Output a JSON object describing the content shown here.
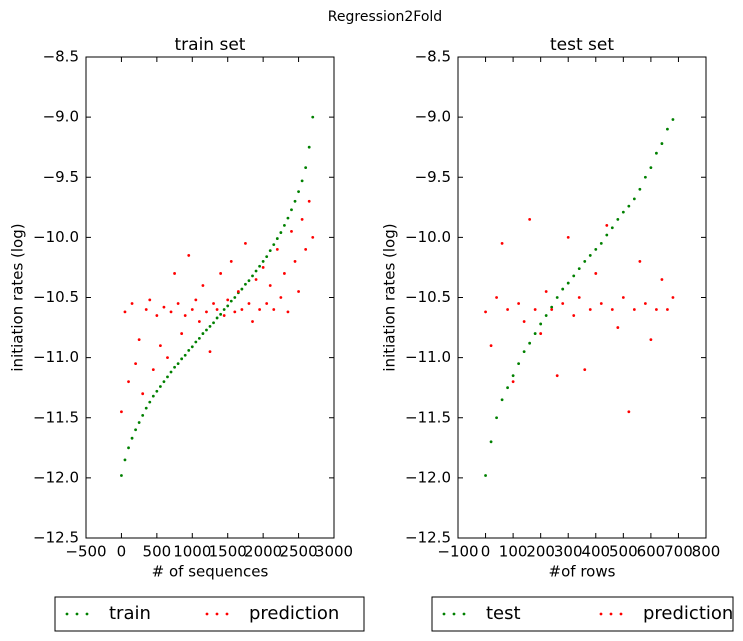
{
  "title": "Regression2Fold",
  "chart_data": [
    {
      "type": "scatter",
      "title": "train set",
      "x_label": "# of sequences",
      "y_label": "initiation rates (log)",
      "xlim": [
        -500,
        3000
      ],
      "ylim": [
        -12.5,
        -8.5
      ],
      "xticks": [
        {
          "value": -500,
          "label": "−500"
        },
        0,
        500,
        1000,
        1500,
        2000,
        2500,
        3000
      ],
      "yticks": [
        {
          "value": -12.5,
          "label": "−12.5"
        },
        {
          "value": -12.0,
          "label": "−12.0"
        },
        {
          "value": -11.5,
          "label": "−11.5"
        },
        {
          "value": -11.0,
          "label": "−11.0"
        },
        {
          "value": -10.5,
          "label": "−10.5"
        },
        {
          "value": -10.0,
          "label": "−10.0"
        },
        {
          "value": -9.5,
          "label": "−9.5"
        },
        {
          "value": -9.0,
          "label": "−9.0"
        },
        {
          "value": -8.5,
          "label": "−8.5"
        }
      ],
      "grid": false,
      "legend": "bottom",
      "x": [
        0,
        50,
        100,
        150,
        200,
        250,
        300,
        350,
        400,
        450,
        500,
        550,
        600,
        650,
        700,
        750,
        800,
        850,
        900,
        950,
        1000,
        1050,
        1100,
        1150,
        1200,
        1250,
        1300,
        1350,
        1400,
        1450,
        1500,
        1550,
        1600,
        1650,
        1700,
        1750,
        1800,
        1850,
        1900,
        1950,
        2000,
        2050,
        2100,
        2150,
        2200,
        2250,
        2300,
        2350,
        2400,
        2450,
        2500,
        2550,
        2600,
        2650,
        2700
      ],
      "series": [
        {
          "name": "train",
          "color": "#008000",
          "values": [
            -11.98,
            -11.85,
            -11.75,
            -11.67,
            -11.6,
            -11.54,
            -11.48,
            -11.42,
            -11.37,
            -11.32,
            -11.28,
            -11.24,
            -11.2,
            -11.16,
            -11.12,
            -11.08,
            -11.05,
            -11.01,
            -10.98,
            -10.94,
            -10.91,
            -10.87,
            -10.84,
            -10.8,
            -10.77,
            -10.74,
            -10.71,
            -10.67,
            -10.64,
            -10.6,
            -10.57,
            -10.53,
            -10.5,
            -10.46,
            -10.43,
            -10.39,
            -10.36,
            -10.32,
            -10.28,
            -10.24,
            -10.2,
            -10.16,
            -10.11,
            -10.06,
            -10.01,
            -9.96,
            -9.9,
            -9.84,
            -9.77,
            -9.7,
            -9.62,
            -9.53,
            -9.42,
            -9.25,
            -9.0
          ]
        },
        {
          "name": "prediction",
          "color": "#ff0000",
          "values": [
            -11.45,
            -10.62,
            -11.2,
            -10.55,
            -11.05,
            -10.85,
            -11.3,
            -10.6,
            -10.52,
            -11.1,
            -10.65,
            -10.9,
            -10.58,
            -11.0,
            -10.62,
            -10.3,
            -10.55,
            -10.8,
            -10.65,
            -10.15,
            -10.6,
            -10.52,
            -10.7,
            -10.4,
            -10.62,
            -10.95,
            -10.55,
            -10.6,
            -10.3,
            -10.65,
            -10.52,
            -10.2,
            -10.62,
            -10.45,
            -10.6,
            -10.05,
            -10.55,
            -10.7,
            -10.35,
            -10.6,
            -10.25,
            -10.55,
            -10.4,
            -10.6,
            -10.1,
            -10.5,
            -10.3,
            -10.62,
            -9.95,
            -10.2,
            -10.45,
            -9.85,
            -10.1,
            -9.7,
            -10.0
          ]
        }
      ]
    },
    {
      "type": "scatter",
      "title": "test set",
      "x_label": "#of rows",
      "y_label": "initiation rates (log)",
      "xlim": [
        -100,
        800
      ],
      "ylim": [
        -12.5,
        -8.5
      ],
      "xticks": [
        {
          "value": -100,
          "label": "−100"
        },
        0,
        100,
        200,
        300,
        400,
        500,
        600,
        700,
        800
      ],
      "yticks": [
        {
          "value": -12.5,
          "label": "−12.5"
        },
        {
          "value": -12.0,
          "label": "−12.0"
        },
        {
          "value": -11.5,
          "label": "−11.5"
        },
        {
          "value": -11.0,
          "label": "−11.0"
        },
        {
          "value": -10.5,
          "label": "−10.5"
        },
        {
          "value": -10.0,
          "label": "−10.0"
        },
        {
          "value": -9.5,
          "label": "−9.5"
        },
        {
          "value": -9.0,
          "label": "−9.0"
        },
        {
          "value": -8.5,
          "label": "−8.5"
        }
      ],
      "grid": false,
      "legend": "bottom",
      "x": [
        0,
        20,
        40,
        60,
        80,
        100,
        120,
        140,
        160,
        180,
        200,
        220,
        240,
        260,
        280,
        300,
        320,
        340,
        360,
        380,
        400,
        420,
        440,
        460,
        480,
        500,
        520,
        540,
        560,
        580,
        600,
        620,
        640,
        660,
        680
      ],
      "series": [
        {
          "name": "test",
          "color": "#008000",
          "values": [
            -11.98,
            -11.7,
            -11.5,
            -11.35,
            -11.25,
            -11.15,
            -11.05,
            -10.95,
            -10.88,
            -10.8,
            -10.72,
            -10.65,
            -10.58,
            -10.5,
            -10.43,
            -10.38,
            -10.32,
            -10.26,
            -10.2,
            -10.15,
            -10.1,
            -10.05,
            -9.98,
            -9.92,
            -9.85,
            -9.79,
            -9.74,
            -9.68,
            -9.6,
            -9.5,
            -9.42,
            -9.3,
            -9.22,
            -9.1,
            -9.02
          ]
        },
        {
          "name": "prediction",
          "color": "#ff0000",
          "values": [
            -10.62,
            -10.9,
            -10.5,
            -10.05,
            -10.6,
            -11.2,
            -10.55,
            -10.7,
            -9.85,
            -10.6,
            -10.8,
            -10.45,
            -10.6,
            -11.15,
            -10.55,
            -10.0,
            -10.65,
            -10.5,
            -11.1,
            -10.6,
            -10.3,
            -10.55,
            -9.9,
            -10.6,
            -10.75,
            -10.5,
            -11.45,
            -10.6,
            -10.2,
            -10.55,
            -10.85,
            -10.6,
            -10.35,
            -10.6,
            -10.5
          ]
        }
      ]
    }
  ]
}
